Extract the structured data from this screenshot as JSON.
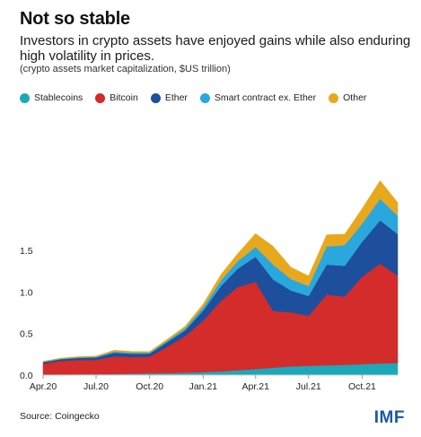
{
  "header": {
    "title": "Not so stable",
    "subtitle": "Investors in crypto assets have enjoyed gains while also enduring high volatility in prices.",
    "note": "(crypto assets market capitalization, $US trillion)"
  },
  "legend": [
    {
      "label": "Stablecoins",
      "color": "#1ba9b9"
    },
    {
      "label": "Bitcoin",
      "color": "#d42b2b"
    },
    {
      "label": "Ether",
      "color": "#1d4f9c"
    },
    {
      "label": "Smart contract ex. Ether",
      "color": "#2aa7dd"
    },
    {
      "label": "Other",
      "color": "#e8a81e"
    }
  ],
  "footer": {
    "source": "Source: Coingecko",
    "logo": "IMF"
  },
  "chart_data": {
    "type": "area",
    "stacked": true,
    "ylim": [
      0,
      3.0
    ],
    "yticks": [
      0.0,
      0.5,
      1.0,
      1.5
    ],
    "ytick_labels": [
      "0.0",
      "0.5",
      "1.0",
      "1.5"
    ],
    "grid": false,
    "legend_position": "top-left",
    "x_ticks": [
      "Apr.20",
      "Jul.20",
      "Oct.20",
      "Jan.21",
      "Apr.21",
      "Jul.21",
      "Oct.21"
    ],
    "x": [
      "2020-04-01",
      "2020-05-01",
      "2020-06-01",
      "2020-07-01",
      "2020-08-01",
      "2020-09-01",
      "2020-10-01",
      "2020-11-01",
      "2020-12-01",
      "2021-01-01",
      "2021-02-01",
      "2021-03-01",
      "2021-04-01",
      "2021-05-01",
      "2021-06-01",
      "2021-07-01",
      "2021-08-01",
      "2021-09-01",
      "2021-10-01",
      "2021-11-01",
      "2021-12-01"
    ],
    "series": [
      {
        "name": "Stablecoins",
        "color": "#1ba9b9",
        "values": [
          0.007,
          0.009,
          0.011,
          0.012,
          0.014,
          0.017,
          0.02,
          0.024,
          0.028,
          0.036,
          0.045,
          0.058,
          0.072,
          0.09,
          0.105,
          0.112,
          0.118,
          0.124,
          0.132,
          0.14,
          0.145
        ]
      },
      {
        "name": "Bitcoin",
        "color": "#d42b2b",
        "values": [
          0.13,
          0.16,
          0.17,
          0.17,
          0.21,
          0.2,
          0.2,
          0.32,
          0.44,
          0.62,
          0.85,
          1.0,
          1.05,
          0.68,
          0.65,
          0.6,
          0.85,
          0.82,
          1.05,
          1.2,
          1.05
        ]
      },
      {
        "name": "Ether",
        "color": "#1d4f9c",
        "values": [
          0.018,
          0.022,
          0.026,
          0.03,
          0.045,
          0.04,
          0.038,
          0.055,
          0.07,
          0.12,
          0.18,
          0.22,
          0.3,
          0.38,
          0.26,
          0.24,
          0.36,
          0.37,
          0.42,
          0.52,
          0.5
        ]
      },
      {
        "name": "Smart contract ex. Ether",
        "color": "#2aa7dd",
        "values": [
          0.005,
          0.006,
          0.007,
          0.008,
          0.015,
          0.014,
          0.013,
          0.018,
          0.025,
          0.04,
          0.07,
          0.09,
          0.12,
          0.18,
          0.14,
          0.12,
          0.22,
          0.25,
          0.22,
          0.26,
          0.22
        ]
      },
      {
        "name": "Other",
        "color": "#e8a81e",
        "values": [
          0.006,
          0.007,
          0.008,
          0.009,
          0.015,
          0.013,
          0.012,
          0.018,
          0.025,
          0.04,
          0.07,
          0.09,
          0.16,
          0.22,
          0.14,
          0.12,
          0.14,
          0.13,
          0.18,
          0.22,
          0.16
        ]
      }
    ]
  }
}
